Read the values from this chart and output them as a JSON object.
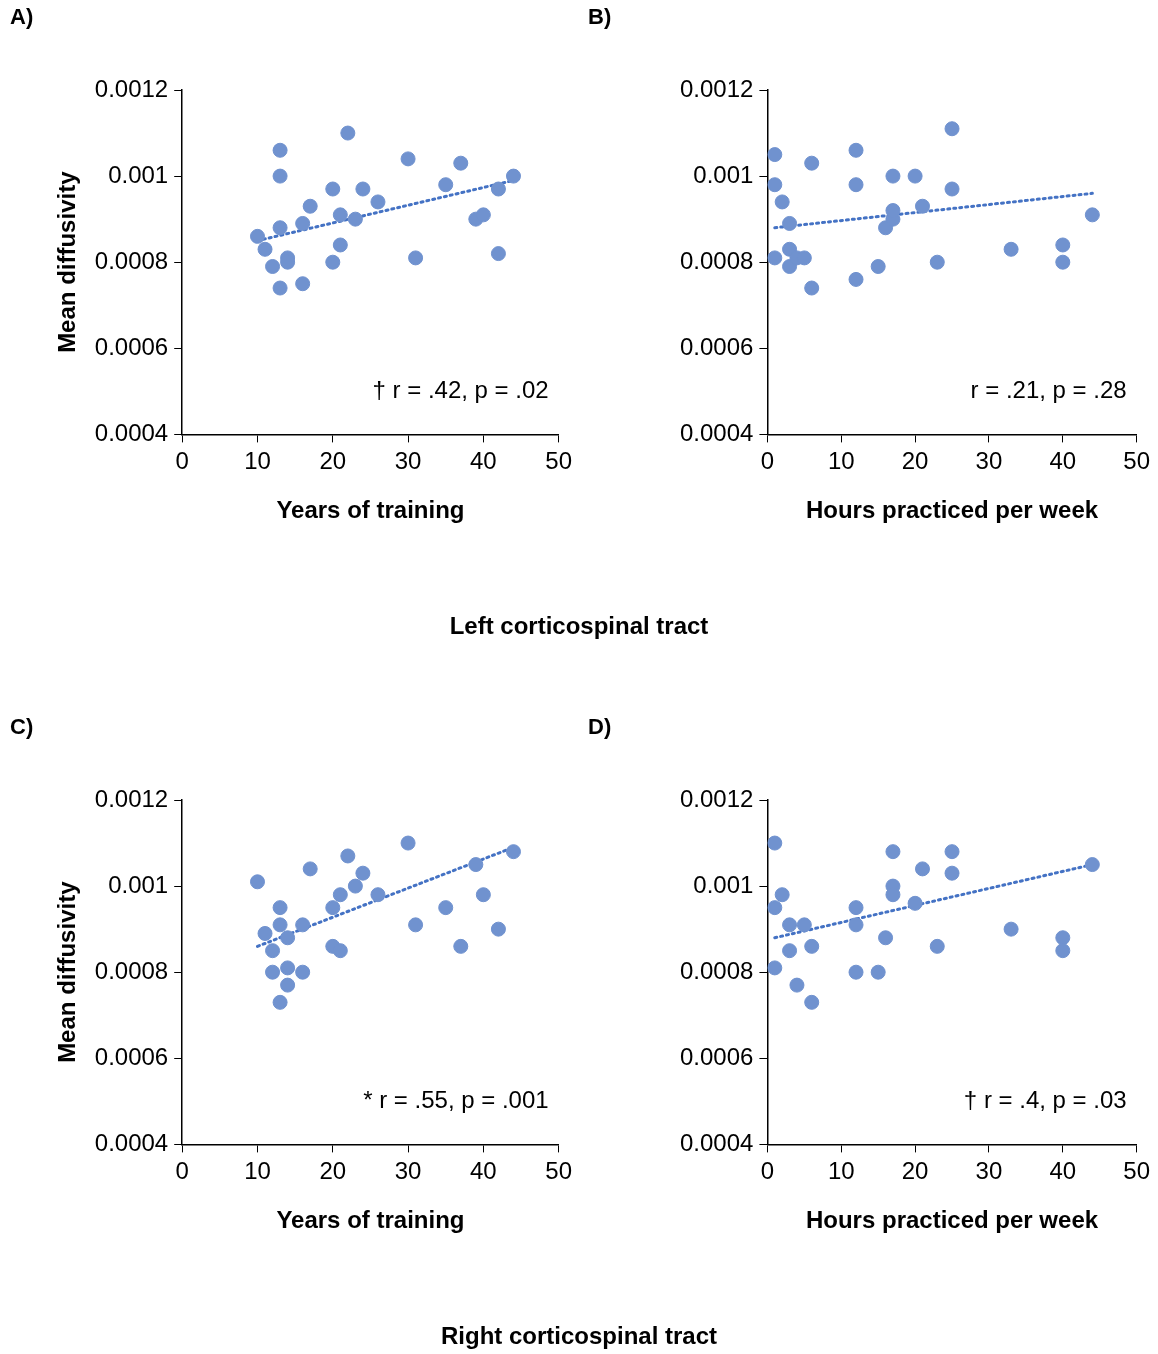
{
  "chart_data": [
    {
      "type": "scatter",
      "title": "A)",
      "subtitle": "Left corticospinal tract",
      "xlabel": "Years of training",
      "ylabel": "Mean diffusivity",
      "xlim": [
        0,
        50
      ],
      "xticks": [
        0,
        10,
        20,
        30,
        40,
        50
      ],
      "ylim": [
        0.0004,
        0.0012
      ],
      "yticks": [
        0.0004,
        0.0006,
        0.0008,
        0.001,
        0.0012
      ],
      "grid": false,
      "legend": false,
      "marker": "circle",
      "annotations": [
        "† r = .42, p = .02"
      ],
      "series": [
        {
          "color": "#7092cf",
          "x": [
            10,
            11,
            12,
            13,
            13,
            13,
            13,
            14,
            14,
            16,
            16,
            17,
            20,
            20,
            21,
            21,
            22,
            23,
            24,
            26,
            30,
            31,
            35,
            37,
            39,
            40,
            42,
            42,
            44
          ],
          "values": [
            0.00086,
            0.00083,
            0.00079,
            0.00106,
            0.001,
            0.00088,
            0.00074,
            0.00081,
            0.0008,
            0.00075,
            0.00089,
            0.00093,
            0.00097,
            0.0008,
            0.00091,
            0.00084,
            0.0011,
            0.0009,
            0.00097,
            0.00094,
            0.00104,
            0.00081,
            0.00098,
            0.00103,
            0.0009,
            0.00091,
            0.00082,
            0.00097,
            0.001
          ]
        },
        {
          "type": "line",
          "color": "#4472c4",
          "line_style": "dotted",
          "marker": "none",
          "x": [
            10,
            44
          ],
          "values": [
            0.00085,
            0.00099
          ]
        }
      ]
    },
    {
      "type": "scatter",
      "title": "B)",
      "xlabel": "Hours practiced per week",
      "xlim": [
        0,
        50
      ],
      "xticks": [
        0,
        10,
        20,
        30,
        40,
        50
      ],
      "ylim": [
        0.0004,
        0.0012
      ],
      "yticks": [
        0.0004,
        0.0006,
        0.0008,
        0.001,
        0.0012
      ],
      "grid": false,
      "legend": false,
      "marker": "circle",
      "annotations": [
        "r = .21, p = .28"
      ],
      "series": [
        {
          "color": "#7092cf",
          "x": [
            1,
            1,
            2,
            1,
            3,
            3,
            3,
            4,
            5,
            6,
            6,
            12,
            12,
            12,
            15,
            16,
            17,
            17,
            17,
            20,
            21,
            23,
            25,
            25,
            33,
            40,
            40,
            44
          ],
          "values": [
            0.00105,
            0.00098,
            0.00094,
            0.00081,
            0.00089,
            0.00083,
            0.00079,
            0.00081,
            0.00081,
            0.00103,
            0.00074,
            0.00106,
            0.00098,
            0.00076,
            0.00079,
            0.00088,
            0.001,
            0.0009,
            0.00092,
            0.001,
            0.00093,
            0.0008,
            0.00111,
            0.00097,
            0.00083,
            0.00084,
            0.0008,
            0.00091
          ]
        },
        {
          "type": "line",
          "color": "#4472c4",
          "line_style": "dotted",
          "marker": "none",
          "x": [
            1,
            44
          ],
          "values": [
            0.00088,
            0.00096
          ]
        }
      ]
    },
    {
      "type": "scatter",
      "title": "C)",
      "subtitle": "Right corticospinal tract",
      "xlabel": "Years of training",
      "ylabel": "Mean diffusivity",
      "xlim": [
        0,
        50
      ],
      "xticks": [
        0,
        10,
        20,
        30,
        40,
        50
      ],
      "ylim": [
        0.0004,
        0.0012
      ],
      "yticks": [
        0.0004,
        0.0006,
        0.0008,
        0.001,
        0.0012
      ],
      "grid": false,
      "legend": false,
      "marker": "circle",
      "annotations": [
        "* r = .55, p = .001"
      ],
      "series": [
        {
          "color": "#7092cf",
          "x": [
            10,
            11,
            12,
            12,
            13,
            13,
            13,
            14,
            14,
            14,
            16,
            16,
            17,
            20,
            20,
            21,
            21,
            22,
            23,
            24,
            26,
            30,
            31,
            35,
            37,
            39,
            40,
            42,
            44
          ],
          "values": [
            0.00101,
            0.00089,
            0.00085,
            0.0008,
            0.00095,
            0.00091,
            0.00073,
            0.00088,
            0.00081,
            0.00077,
            0.00091,
            0.0008,
            0.00104,
            0.00095,
            0.00086,
            0.00098,
            0.00085,
            0.00107,
            0.001,
            0.00103,
            0.00098,
            0.0011,
            0.00091,
            0.00095,
            0.00086,
            0.00105,
            0.00098,
            0.0009,
            0.00108
          ]
        },
        {
          "type": "line",
          "color": "#4472c4",
          "line_style": "dotted",
          "marker": "none",
          "x": [
            10,
            44
          ],
          "values": [
            0.00086,
            0.00109
          ]
        }
      ]
    },
    {
      "type": "scatter",
      "title": "D)",
      "xlabel": "Hours practiced per week",
      "xlim": [
        0,
        50
      ],
      "xticks": [
        0,
        10,
        20,
        30,
        40,
        50
      ],
      "ylim": [
        0.0004,
        0.0012
      ],
      "yticks": [
        0.0004,
        0.0006,
        0.0008,
        0.001,
        0.0012
      ],
      "grid": false,
      "legend": false,
      "marker": "circle",
      "annotations": [
        "† r = .4, p = .03"
      ],
      "series": [
        {
          "color": "#7092cf",
          "x": [
            1,
            1,
            1,
            2,
            3,
            3,
            4,
            5,
            6,
            6,
            12,
            12,
            12,
            15,
            16,
            17,
            17,
            17,
            20,
            21,
            23,
            25,
            25,
            33,
            40,
            40,
            44
          ],
          "values": [
            0.0011,
            0.00095,
            0.00081,
            0.00098,
            0.00091,
            0.00085,
            0.00077,
            0.00091,
            0.00086,
            0.00073,
            0.00095,
            0.00091,
            0.0008,
            0.0008,
            0.00088,
            0.00108,
            0.001,
            0.00098,
            0.00096,
            0.00104,
            0.00086,
            0.00108,
            0.00103,
            0.0009,
            0.00088,
            0.00085,
            0.00105
          ]
        },
        {
          "type": "line",
          "color": "#4472c4",
          "line_style": "dotted",
          "marker": "none",
          "x": [
            1,
            44
          ],
          "values": [
            0.00088,
            0.00105
          ]
        }
      ]
    }
  ]
}
